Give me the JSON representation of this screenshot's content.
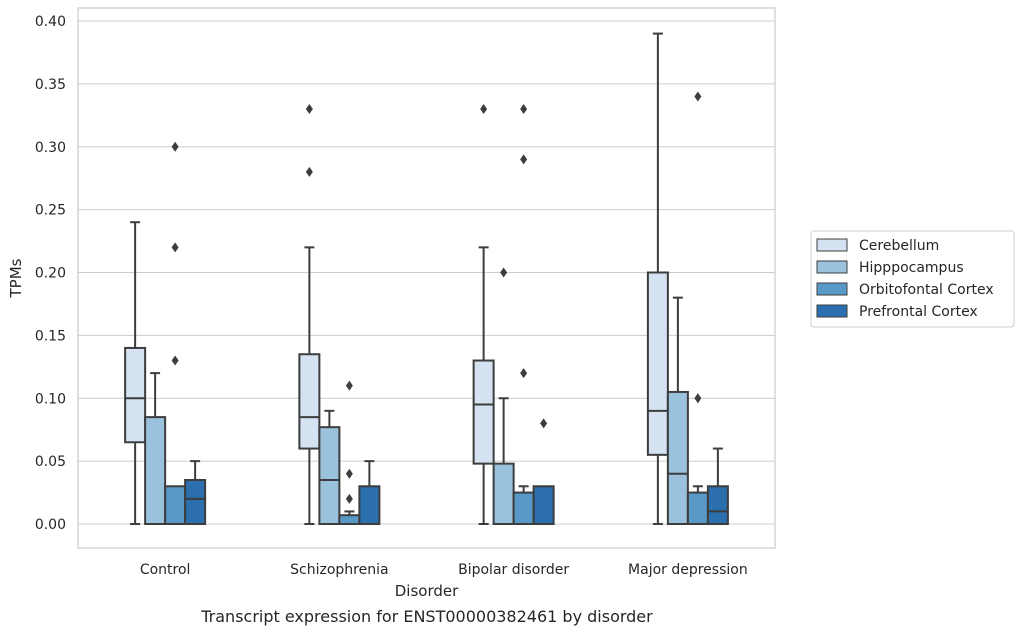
{
  "chart_data": {
    "type": "box",
    "caption": "Transcript expression for ENST00000382461 by disorder",
    "xlabel": "Disorder",
    "ylabel": "TPMs",
    "ylim": [
      -0.019,
      0.41
    ],
    "yticks": [
      "0.00",
      "0.05",
      "0.10",
      "0.15",
      "0.20",
      "0.25",
      "0.30",
      "0.35",
      "0.40"
    ],
    "categories": [
      "Control",
      "Schizophrenia",
      "Bipolar disorder",
      "Major depression"
    ],
    "grid": "horizontal",
    "legend_position": "right",
    "series": [
      {
        "name": "Cerebellum",
        "color": "#d4e2f1",
        "boxes": [
          {
            "whislo": 0.0,
            "q1": 0.065,
            "med": 0.1,
            "q3": 0.14,
            "whishi": 0.24,
            "fliers": []
          },
          {
            "whislo": 0.0,
            "q1": 0.06,
            "med": 0.085,
            "q3": 0.135,
            "whishi": 0.22,
            "fliers": [
              0.28,
              0.33
            ]
          },
          {
            "whislo": 0.0,
            "q1": 0.048,
            "med": 0.095,
            "q3": 0.13,
            "whishi": 0.22,
            "fliers": [
              0.33
            ]
          },
          {
            "whislo": 0.0,
            "q1": 0.055,
            "med": 0.09,
            "q3": 0.2,
            "whishi": 0.39,
            "fliers": []
          }
        ]
      },
      {
        "name": "Hipppocampus",
        "color": "#9ac2dd",
        "boxes": [
          {
            "whislo": 0.0,
            "q1": 0.0,
            "med": 0.0,
            "q3": 0.085,
            "whishi": 0.12,
            "fliers": []
          },
          {
            "whislo": 0.0,
            "q1": 0.0,
            "med": 0.035,
            "q3": 0.077,
            "whishi": 0.09,
            "fliers": []
          },
          {
            "whislo": 0.0,
            "q1": 0.0,
            "med": 0.0,
            "q3": 0.048,
            "whishi": 0.1,
            "fliers": [
              0.2
            ]
          },
          {
            "whislo": 0.0,
            "q1": 0.0,
            "med": 0.04,
            "q3": 0.105,
            "whishi": 0.18,
            "fliers": []
          }
        ]
      },
      {
        "name": "Orbitofontal Cortex",
        "color": "#5899c7",
        "boxes": [
          {
            "whislo": 0.0,
            "q1": 0.0,
            "med": 0.0,
            "q3": 0.03,
            "whishi": 0.03,
            "fliers": [
              0.13,
              0.22,
              0.3
            ]
          },
          {
            "whislo": 0.0,
            "q1": 0.0,
            "med": 0.0,
            "q3": 0.007,
            "whishi": 0.01,
            "fliers": [
              0.02,
              0.04,
              0.11
            ]
          },
          {
            "whislo": 0.0,
            "q1": 0.0,
            "med": 0.0,
            "q3": 0.025,
            "whishi": 0.03,
            "fliers": [
              0.12,
              0.29,
              0.33
            ]
          },
          {
            "whislo": 0.0,
            "q1": 0.0,
            "med": 0.0,
            "q3": 0.025,
            "whishi": 0.03,
            "fliers": [
              0.1,
              0.34
            ]
          }
        ]
      },
      {
        "name": "Prefrontal Cortex",
        "color": "#2b6fae",
        "boxes": [
          {
            "whislo": 0.0,
            "q1": 0.0,
            "med": 0.02,
            "q3": 0.035,
            "whishi": 0.05,
            "fliers": []
          },
          {
            "whislo": 0.0,
            "q1": 0.0,
            "med": 0.0,
            "q3": 0.03,
            "whishi": 0.05,
            "fliers": []
          },
          {
            "whislo": 0.0,
            "q1": 0.0,
            "med": 0.0,
            "q3": 0.03,
            "whishi": 0.03,
            "fliers": [
              0.08
            ]
          },
          {
            "whislo": 0.0,
            "q1": 0.0,
            "med": 0.01,
            "q3": 0.03,
            "whishi": 0.06,
            "fliers": []
          }
        ]
      }
    ]
  }
}
